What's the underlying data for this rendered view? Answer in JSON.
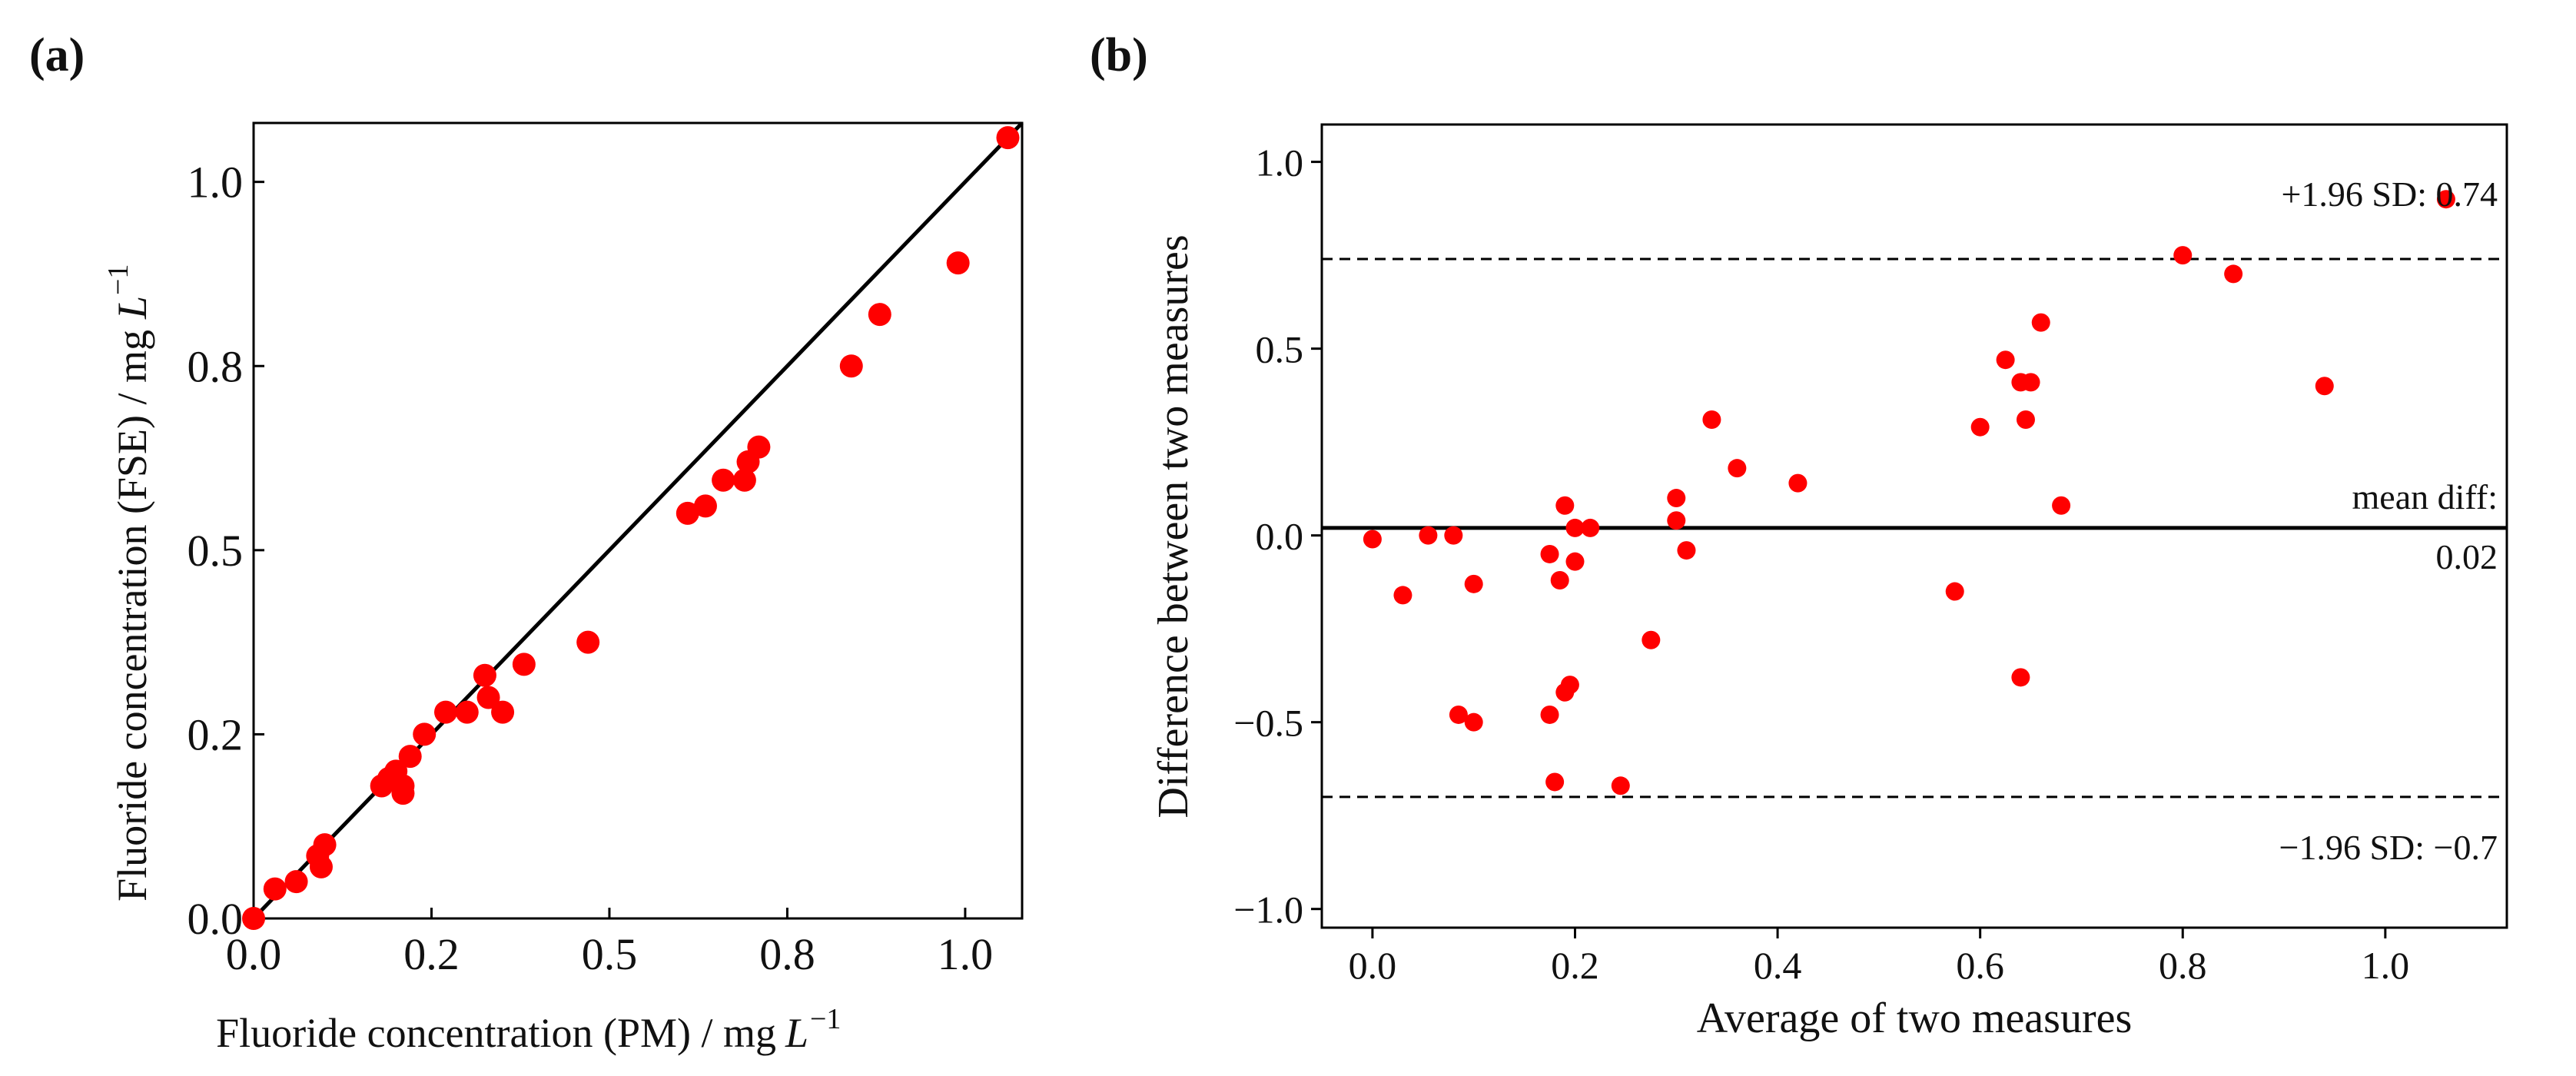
{
  "colors": {
    "marker": "#ff0000",
    "line": "#000000",
    "text": "#111111"
  },
  "chart_data": [
    {
      "panel_label": "(a)",
      "type": "scatter",
      "title": "",
      "xlabel": "Fluoride concentration (PM) / mg",
      "xlabel_unit": "L",
      "xlabel_sup": "−1",
      "ylabel": "Fluoride concentration (FSE) / mg",
      "ylabel_unit": "L",
      "ylabel_sup": "−1",
      "xlim": [
        0,
        1.08
      ],
      "ylim": [
        0,
        1.08
      ],
      "xticks": [
        0,
        0.25,
        0.5,
        0.75,
        1.0
      ],
      "yticks": [
        0,
        0.25,
        0.5,
        0.75,
        1.0
      ],
      "xtick_labels": [
        "0.0",
        "0.2",
        "0.5",
        "0.8",
        "1.0"
      ],
      "ytick_labels": [
        "0.0",
        "0.2",
        "0.5",
        "0.8",
        "1.0"
      ],
      "reference_line": {
        "label": "y = x",
        "from": [
          0,
          0
        ],
        "to": [
          1.08,
          1.08
        ]
      },
      "series": [
        {
          "name": "samples",
          "x": [
            0.0,
            0.03,
            0.06,
            0.09,
            0.095,
            0.1,
            0.18,
            0.19,
            0.2,
            0.21,
            0.21,
            0.22,
            0.24,
            0.27,
            0.3,
            0.325,
            0.33,
            0.35,
            0.38,
            0.47,
            0.61,
            0.635,
            0.66,
            0.69,
            0.695,
            0.71,
            0.84,
            0.88,
            0.99,
            1.06
          ],
          "y": [
            0.0,
            0.04,
            0.05,
            0.085,
            0.07,
            0.1,
            0.18,
            0.19,
            0.2,
            0.18,
            0.17,
            0.22,
            0.25,
            0.28,
            0.28,
            0.33,
            0.3,
            0.28,
            0.345,
            0.375,
            0.55,
            0.56,
            0.595,
            0.595,
            0.62,
            0.64,
            0.75,
            0.82,
            0.89,
            1.06
          ]
        }
      ]
    },
    {
      "panel_label": "(b)",
      "type": "scatter",
      "title": "",
      "xlabel": "Average of two measures",
      "ylabel": "Difference between two measures",
      "xlim": [
        -0.05,
        1.12
      ],
      "ylim": [
        -1.05,
        1.1
      ],
      "xticks": [
        0,
        0.2,
        0.4,
        0.6,
        0.8,
        1.0
      ],
      "yticks": [
        -1.0,
        -0.5,
        0.0,
        0.5,
        1.0
      ],
      "xtick_labels": [
        "0.0",
        "0.2",
        "0.4",
        "0.6",
        "0.8",
        "1.0"
      ],
      "ytick_labels": [
        "−1.0",
        "−0.5",
        "0.0",
        "0.5",
        "1.0"
      ],
      "mean_diff": 0.02,
      "upper_loa": 0.74,
      "lower_loa": -0.7,
      "annotations": {
        "upper": "+1.96 SD: 0.74",
        "mean_line1": "mean diff:",
        "mean_line2": "0.02",
        "lower": "−1.96 SD: −0.7"
      },
      "series": [
        {
          "name": "samples",
          "x": [
            0.0,
            0.03,
            0.055,
            0.08,
            0.085,
            0.1,
            0.1,
            0.175,
            0.175,
            0.18,
            0.185,
            0.19,
            0.19,
            0.195,
            0.2,
            0.2,
            0.215,
            0.245,
            0.275,
            0.3,
            0.3,
            0.31,
            0.335,
            0.36,
            0.42,
            0.575,
            0.6,
            0.625,
            0.64,
            0.64,
            0.645,
            0.65,
            0.66,
            0.68,
            0.8,
            0.85,
            0.94,
            1.06
          ],
          "y": [
            -0.01,
            -0.16,
            0.0,
            0.0,
            -0.48,
            -0.13,
            -0.5,
            -0.05,
            -0.48,
            -0.66,
            -0.12,
            0.08,
            -0.42,
            -0.4,
            0.02,
            -0.07,
            0.02,
            -0.67,
            -0.28,
            0.1,
            0.04,
            -0.04,
            0.31,
            0.18,
            0.14,
            -0.15,
            0.29,
            0.47,
            -0.38,
            0.41,
            0.31,
            0.41,
            0.57,
            0.08,
            0.75,
            0.7,
            0.4,
            0.9
          ]
        }
      ]
    }
  ]
}
